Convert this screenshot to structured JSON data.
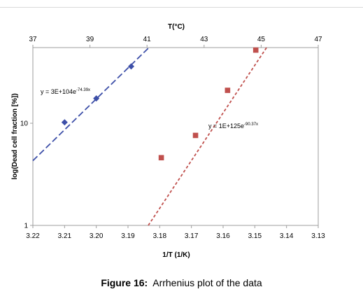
{
  "caption": {
    "label": "Figure 16:",
    "text": "Arrhenius plot of the data"
  },
  "chart_data": {
    "type": "scatter",
    "xlabel": "1/T (1/K)",
    "ylabel": "log(Dead cell fraction [%])",
    "x_top_label": "T(°C)",
    "x_ticks": [
      "3.22",
      "3.21",
      "3.20",
      "3.19",
      "3.18",
      "3.17",
      "3.16",
      "3.15",
      "3.14",
      "3.13"
    ],
    "x_top_ticks": [
      "37",
      "39",
      "41",
      "43",
      "45",
      "47"
    ],
    "x_top_tick_values": [
      37,
      39,
      41,
      43,
      45,
      47
    ],
    "y_ticks": [
      "1",
      "10"
    ],
    "xlim": [
      3.22,
      3.13
    ],
    "x_top_lim": [
      37,
      47
    ],
    "ylim": [
      1,
      55
    ],
    "y_scale": "log",
    "grid": false,
    "series": [
      {
        "name": "",
        "color": "#3d4fa8",
        "marker": "diamond",
        "x": [
          3.21,
          3.2,
          3.189
        ],
        "y": [
          10.2,
          17.5,
          36
        ],
        "trend": {
          "equation": "y = 3E+104e",
          "exponent": "-74.39x",
          "style": "dashed",
          "x": [
            3.22,
            3.1834
          ],
          "y": [
            4.3,
            55
          ]
        }
      },
      {
        "name": "",
        "color": "#c0504d",
        "marker": "square",
        "x": [
          3.1795,
          3.1687,
          3.1586,
          3.1497
        ],
        "y": [
          4.6,
          7.6,
          21,
          52
        ],
        "trend": {
          "equation": "y = 1E+125e",
          "exponent": "-90.37x",
          "style": "dashed",
          "x": [
            3.1836,
            3.1463
          ],
          "y": [
            1,
            55
          ]
        }
      }
    ]
  }
}
